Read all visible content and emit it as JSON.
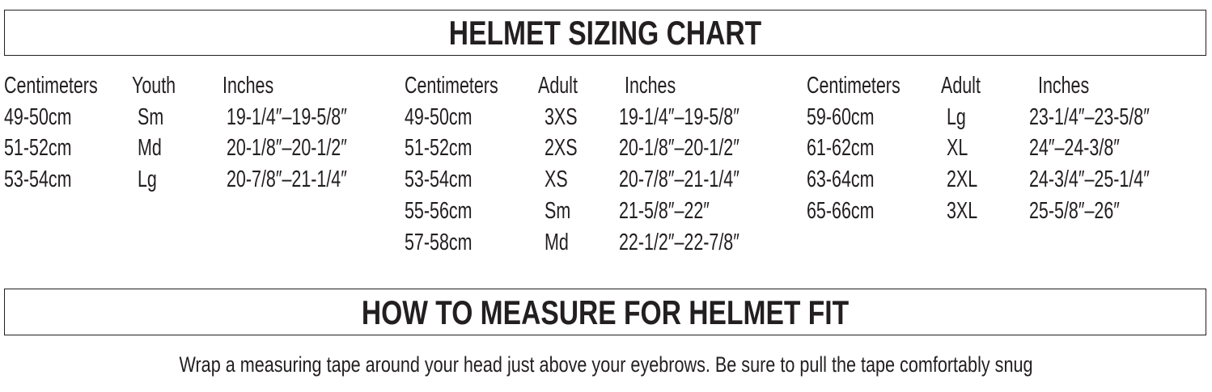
{
  "sizing_chart": {
    "title": "HELMET SIZING CHART",
    "groups": [
      {
        "headers": [
          "Centimeters",
          "Youth",
          "Inches"
        ],
        "rows": [
          [
            "49-50cm",
            "Sm",
            "19-1/4″–19-5/8″"
          ],
          [
            "51-52cm",
            "Md",
            "20-1/8″–20-1/2″"
          ],
          [
            "53-54cm",
            "Lg",
            "20-7/8″–21-1/4″"
          ]
        ]
      },
      {
        "headers": [
          "Centimeters",
          "Adult",
          "Inches"
        ],
        "rows": [
          [
            "49-50cm",
            "3XS",
            "19-1/4″–19-5/8″"
          ],
          [
            "51-52cm",
            "2XS",
            "20-1/8″–20-1/2″"
          ],
          [
            "53-54cm",
            "XS",
            "20-7/8″–21-1/4″"
          ],
          [
            "55-56cm",
            "Sm",
            "21-5/8″–22″"
          ],
          [
            "57-58cm",
            "Md",
            "22-1/2″–22-7/8″"
          ]
        ]
      },
      {
        "headers": [
          "Centimeters",
          "Adult",
          "Inches"
        ],
        "rows": [
          [
            "59-60cm",
            "Lg",
            "23-1/4″–23-5/8″"
          ],
          [
            "61-62cm",
            "XL",
            "24″–24-3/8″"
          ],
          [
            "63-64cm",
            "2XL",
            "24-3/4″–25-1/4″"
          ],
          [
            "65-66cm",
            "3XL",
            "25-5/8″–26″"
          ]
        ]
      }
    ]
  },
  "measure": {
    "title": "HOW TO MEASURE FOR HELMET FIT",
    "instructions": "Wrap a measuring tape around your head just above your eyebrows. Be sure to pull the tape comfortably snug"
  }
}
